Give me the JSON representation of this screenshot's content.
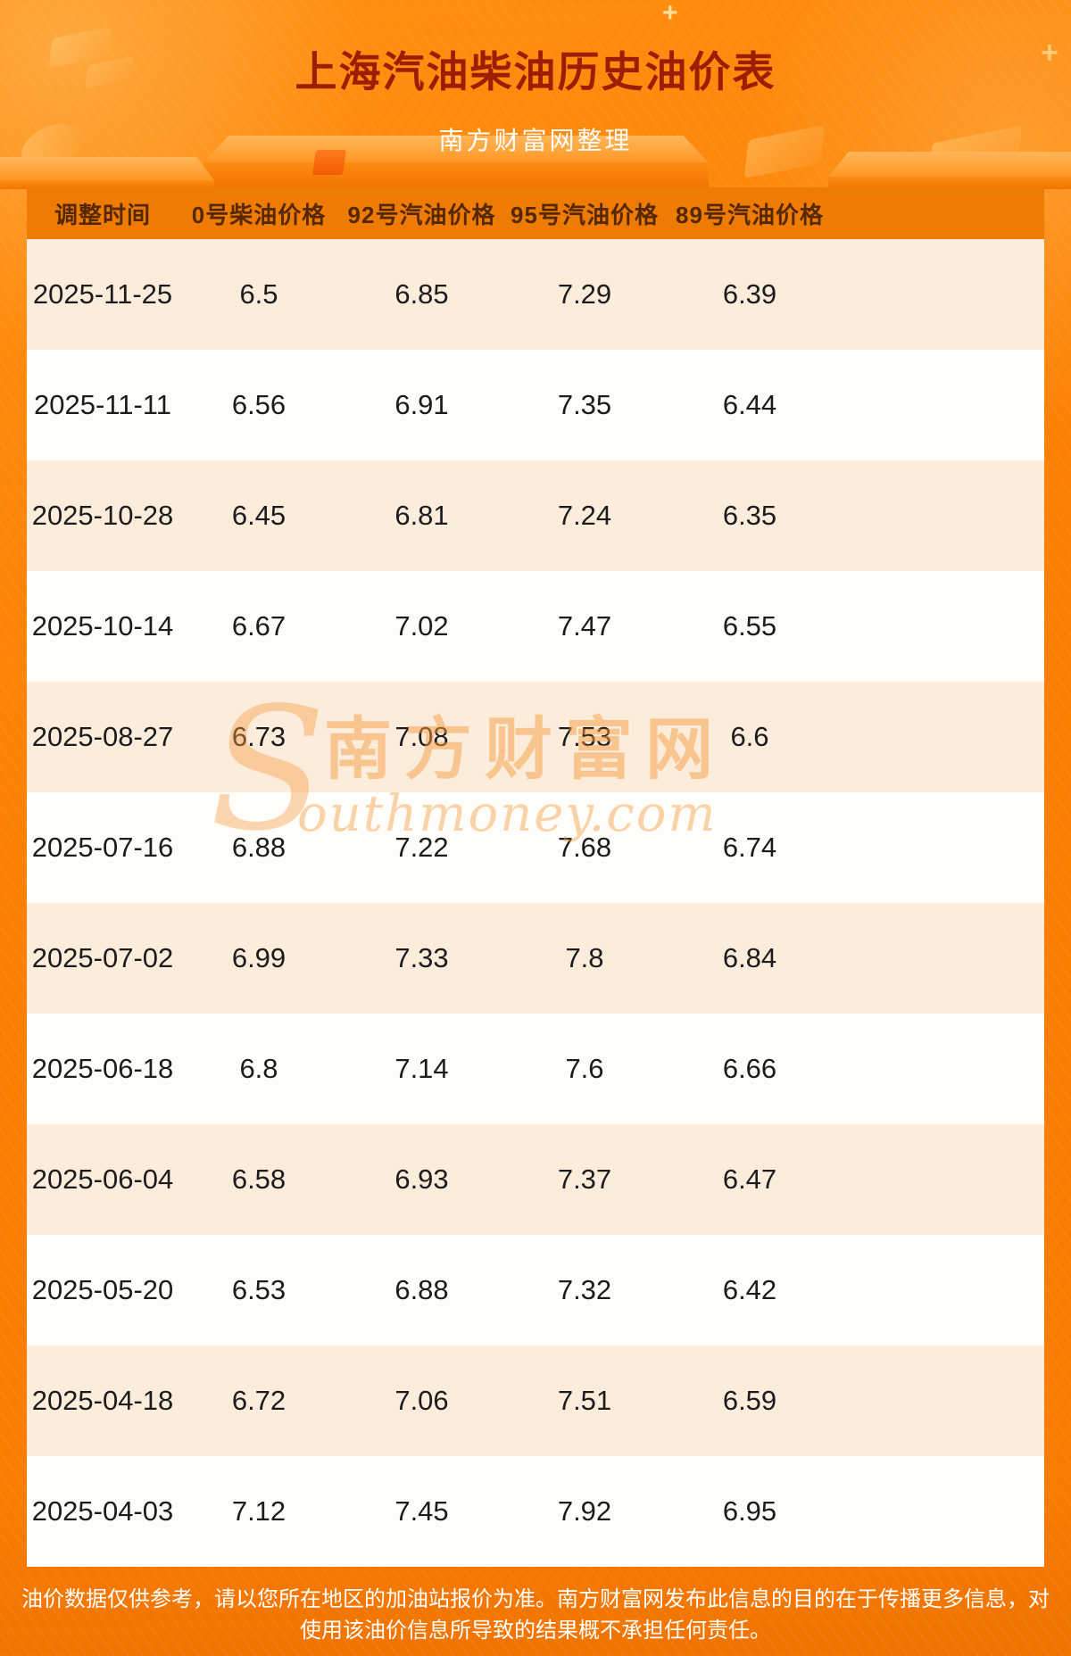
{
  "page": {
    "title": "上海汽油柴油历史油价表",
    "subtitle": "南方财富网整理",
    "disclaimer": "油价数据仅供参考，请以您所在地区的加油站报价为准。南方财富网发布此信息的目的在于传播更多信息，对使用该油价信息所导致的结果概不承担任何责任。"
  },
  "watermark": {
    "initial": "S",
    "cn": "南方财富网",
    "en": "outhmoney.com"
  },
  "colors": {
    "background": "#fb7f03",
    "title_text": "#9c1d00",
    "subtitle_text": "#ffffff",
    "header_bg": "#ee7b03",
    "header_text": "#552800",
    "row_cream": "#fcecdc",
    "row_white": "#fffdfa",
    "body_text": "#1c1c1c",
    "footer_text": "#ffffff",
    "watermark": "#f59e42"
  },
  "chart_data": {
    "type": "table",
    "title": "上海汽油柴油历史油价表",
    "columns": [
      "调整时间",
      "0号柴油价格",
      "92号汽油价格",
      "95号汽油价格",
      "89号汽油价格"
    ],
    "rows": [
      [
        "2025-11-25",
        "6.5",
        "6.85",
        "7.29",
        "6.39"
      ],
      [
        "2025-11-11",
        "6.56",
        "6.91",
        "7.35",
        "6.44"
      ],
      [
        "2025-10-28",
        "6.45",
        "6.81",
        "7.24",
        "6.35"
      ],
      [
        "2025-10-14",
        "6.67",
        "7.02",
        "7.47",
        "6.55"
      ],
      [
        "2025-08-27",
        "6.73",
        "7.08",
        "7.53",
        "6.6"
      ],
      [
        "2025-07-16",
        "6.88",
        "7.22",
        "7.68",
        "6.74"
      ],
      [
        "2025-07-02",
        "6.99",
        "7.33",
        "7.8",
        "6.84"
      ],
      [
        "2025-06-18",
        "6.8",
        "7.14",
        "7.6",
        "6.66"
      ],
      [
        "2025-06-04",
        "6.58",
        "6.93",
        "7.37",
        "6.47"
      ],
      [
        "2025-05-20",
        "6.53",
        "6.88",
        "7.32",
        "6.42"
      ],
      [
        "2025-04-18",
        "6.72",
        "7.06",
        "7.51",
        "6.59"
      ],
      [
        "2025-04-03",
        "7.12",
        "7.45",
        "7.92",
        "6.95"
      ]
    ]
  }
}
